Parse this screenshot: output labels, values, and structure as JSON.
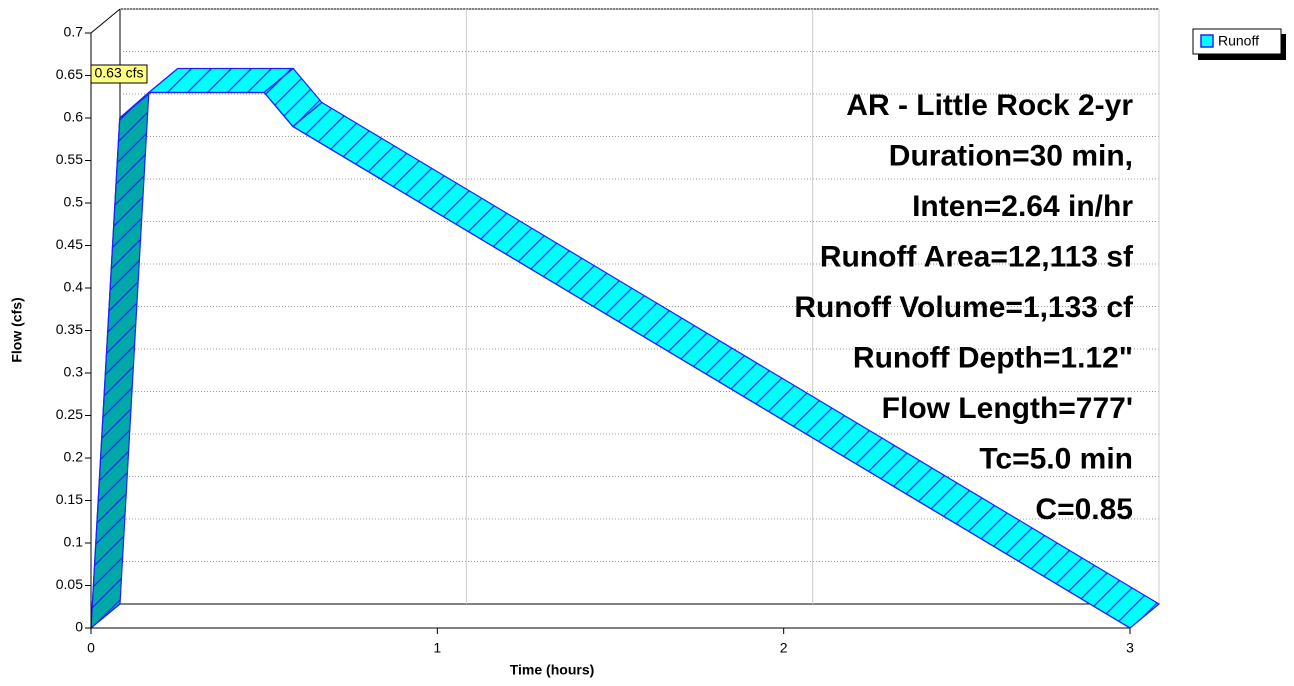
{
  "chart_data": {
    "type": "area",
    "xlabel": "Time  (hours)",
    "ylabel": "Flow  (cfs)",
    "x": [
      0,
      0.083,
      0.167,
      0.5,
      0.583,
      3
    ],
    "series": [
      {
        "name": "Runoff",
        "color": "#00ffff",
        "values": [
          0,
          0.6,
          0.63,
          0.63,
          0.59,
          0
        ]
      }
    ],
    "xlim": [
      0,
      3
    ],
    "ylim": [
      0,
      0.7
    ],
    "xticks": [
      0,
      1,
      2,
      3
    ],
    "yticks": [
      0,
      0.05,
      0.1,
      0.15,
      0.2,
      0.25,
      0.3,
      0.35,
      0.4,
      0.45,
      0.5,
      0.55,
      0.6,
      0.65,
      0.7
    ],
    "grid": true,
    "legend": "upper right",
    "peak_label": "0.63 cfs",
    "annotations": [
      "AR - Little Rock 2-yr",
      "Duration=30 min,",
      "Inten=2.64 in/hr",
      "Runoff Area=12,113 sf",
      "Runoff Volume=1,133 cf",
      "Runoff Depth=1.12\"",
      "Flow Length=777'",
      "Tc=5.0 min",
      "C=0.85"
    ]
  }
}
